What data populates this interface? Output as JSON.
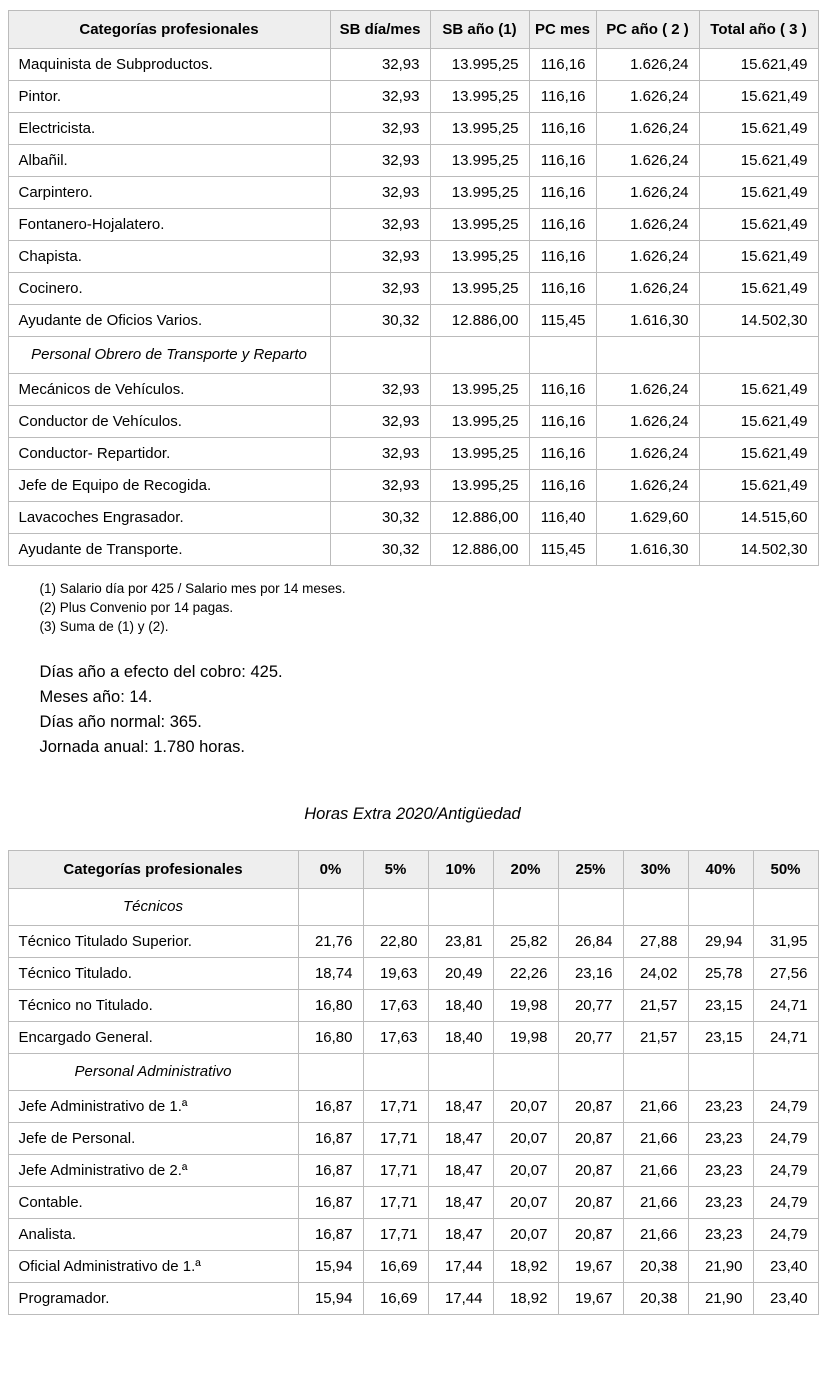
{
  "table1": {
    "headers": [
      "Categorías profesionales",
      "SB día/mes",
      "SB año (1)",
      "PC mes",
      "PC año ( 2 )",
      "Total año ( 3 )"
    ],
    "rows": [
      {
        "type": "data",
        "label": "Maquinista de Subproductos.",
        "values": [
          "32,93",
          "13.995,25",
          "116,16",
          "1.626,24",
          "15.621,49"
        ]
      },
      {
        "type": "data",
        "label": "Pintor.",
        "values": [
          "32,93",
          "13.995,25",
          "116,16",
          "1.626,24",
          "15.621,49"
        ]
      },
      {
        "type": "data",
        "label": "Electricista.",
        "values": [
          "32,93",
          "13.995,25",
          "116,16",
          "1.626,24",
          "15.621,49"
        ]
      },
      {
        "type": "data",
        "label": "Albañil.",
        "values": [
          "32,93",
          "13.995,25",
          "116,16",
          "1.626,24",
          "15.621,49"
        ]
      },
      {
        "type": "data",
        "label": "Carpintero.",
        "values": [
          "32,93",
          "13.995,25",
          "116,16",
          "1.626,24",
          "15.621,49"
        ]
      },
      {
        "type": "data",
        "label": "Fontanero-Hojalatero.",
        "values": [
          "32,93",
          "13.995,25",
          "116,16",
          "1.626,24",
          "15.621,49"
        ]
      },
      {
        "type": "data",
        "label": "Chapista.",
        "values": [
          "32,93",
          "13.995,25",
          "116,16",
          "1.626,24",
          "15.621,49"
        ]
      },
      {
        "type": "data",
        "label": "Cocinero.",
        "values": [
          "32,93",
          "13.995,25",
          "116,16",
          "1.626,24",
          "15.621,49"
        ]
      },
      {
        "type": "data",
        "label": "Ayudante de Oficios Varios.",
        "values": [
          "30,32",
          "12.886,00",
          "115,45",
          "1.616,30",
          "14.502,30"
        ]
      },
      {
        "type": "section",
        "label": "Personal Obrero de Transporte y Reparto",
        "values": [
          "",
          "",
          "",
          "",
          ""
        ]
      },
      {
        "type": "data",
        "label": "Mecánicos de Vehículos.",
        "values": [
          "32,93",
          "13.995,25",
          "116,16",
          "1.626,24",
          "15.621,49"
        ]
      },
      {
        "type": "data",
        "label": "Conductor de Vehículos.",
        "values": [
          "32,93",
          "13.995,25",
          "116,16",
          "1.626,24",
          "15.621,49"
        ]
      },
      {
        "type": "data",
        "label": "Conductor- Repartidor.",
        "values": [
          "32,93",
          "13.995,25",
          "116,16",
          "1.626,24",
          "15.621,49"
        ]
      },
      {
        "type": "data",
        "label": "Jefe de Equipo de Recogida.",
        "values": [
          "32,93",
          "13.995,25",
          "116,16",
          "1.626,24",
          "15.621,49"
        ]
      },
      {
        "type": "data",
        "label": "Lavacoches Engrasador.",
        "values": [
          "30,32",
          "12.886,00",
          "116,40",
          "1.629,60",
          "14.515,60"
        ]
      },
      {
        "type": "data",
        "label": "Ayudante de Transporte.",
        "values": [
          "30,32",
          "12.886,00",
          "115,45",
          "1.616,30",
          "14.502,30"
        ]
      }
    ]
  },
  "footnotes": {
    "line1": "(1) Salario día por 425 / Salario mes por 14 meses.",
    "line2": "(2) Plus Convenio por 14 pagas.",
    "line3": "(3) Suma de (1) y (2)."
  },
  "info_block": {
    "line1": "Días año a efecto del cobro: 425.",
    "line2": "Meses año: 14.",
    "line3": "Días año normal: 365.",
    "line4": "Jornada anual: 1.780 horas."
  },
  "heading2": "Horas Extra 2020/Antigüedad",
  "table2": {
    "headers": [
      "Categorías profesionales",
      "0%",
      "5%",
      "10%",
      "20%",
      "25%",
      "30%",
      "40%",
      "50%"
    ],
    "rows": [
      {
        "type": "section",
        "label": "Técnicos",
        "values": [
          "",
          "",
          "",
          "",
          "",
          "",
          "",
          ""
        ]
      },
      {
        "type": "data",
        "label": "Técnico Titulado Superior.",
        "values": [
          "21,76",
          "22,80",
          "23,81",
          "25,82",
          "26,84",
          "27,88",
          "29,94",
          "31,95"
        ]
      },
      {
        "type": "data",
        "label": "Técnico Titulado.",
        "values": [
          "18,74",
          "19,63",
          "20,49",
          "22,26",
          "23,16",
          "24,02",
          "25,78",
          "27,56"
        ]
      },
      {
        "type": "data",
        "label": "Técnico no Titulado.",
        "values": [
          "16,80",
          "17,63",
          "18,40",
          "19,98",
          "20,77",
          "21,57",
          "23,15",
          "24,71"
        ]
      },
      {
        "type": "data",
        "label": "Encargado General.",
        "values": [
          "16,80",
          "17,63",
          "18,40",
          "19,98",
          "20,77",
          "21,57",
          "23,15",
          "24,71"
        ]
      },
      {
        "type": "section",
        "label": "Personal Administrativo",
        "values": [
          "",
          "",
          "",
          "",
          "",
          "",
          "",
          ""
        ]
      },
      {
        "type": "data",
        "label": "Jefe Administrativo de 1.ª",
        "values": [
          "16,87",
          "17,71",
          "18,47",
          "20,07",
          "20,87",
          "21,66",
          "23,23",
          "24,79"
        ]
      },
      {
        "type": "data",
        "label": "Jefe de Personal.",
        "values": [
          "16,87",
          "17,71",
          "18,47",
          "20,07",
          "20,87",
          "21,66",
          "23,23",
          "24,79"
        ]
      },
      {
        "type": "data",
        "label": "Jefe Administrativo de 2.ª",
        "values": [
          "16,87",
          "17,71",
          "18,47",
          "20,07",
          "20,87",
          "21,66",
          "23,23",
          "24,79"
        ]
      },
      {
        "type": "data",
        "label": "Contable.",
        "values": [
          "16,87",
          "17,71",
          "18,47",
          "20,07",
          "20,87",
          "21,66",
          "23,23",
          "24,79"
        ]
      },
      {
        "type": "data",
        "label": "Analista.",
        "values": [
          "16,87",
          "17,71",
          "18,47",
          "20,07",
          "20,87",
          "21,66",
          "23,23",
          "24,79"
        ]
      },
      {
        "type": "data",
        "label": "Oficial Administrativo de 1.ª",
        "values": [
          "15,94",
          "16,69",
          "17,44",
          "18,92",
          "19,67",
          "20,38",
          "21,90",
          "23,40"
        ]
      },
      {
        "type": "data",
        "label": "Programador.",
        "values": [
          "15,94",
          "16,69",
          "17,44",
          "18,92",
          "19,67",
          "20,38",
          "21,90",
          "23,40"
        ]
      }
    ]
  }
}
